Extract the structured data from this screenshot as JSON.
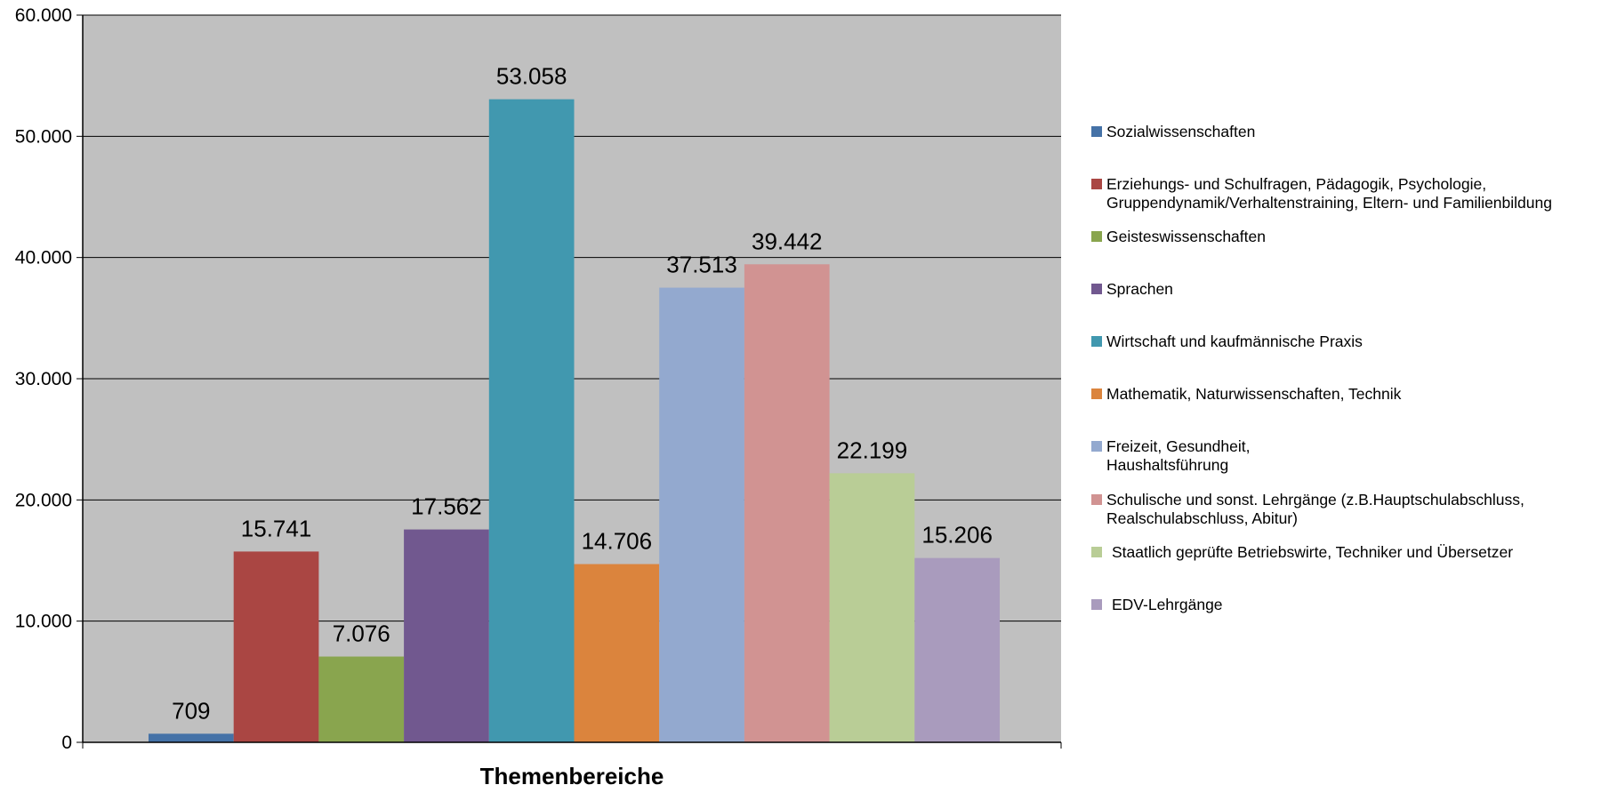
{
  "chart_data": {
    "type": "bar",
    "title": "",
    "xlabel": "Themenbereiche",
    "ylabel": "",
    "ylim": [
      0,
      60000
    ],
    "yticks": [
      0,
      10000,
      20000,
      30000,
      40000,
      50000,
      60000
    ],
    "ytick_labels": [
      "0",
      "10.000",
      "20.000",
      "30.000",
      "40.000",
      "50.000",
      "60.000"
    ],
    "grid": true,
    "legend_position": "right",
    "series": [
      {
        "name": "Sozialwissenschaften",
        "value": 709,
        "label": "709",
        "color": "#4572A7"
      },
      {
        "name": "Erziehungs- und Schulfragen, Pädagogik, Psychologie, Gruppendynamik/Verhaltenstraining, Eltern- und Familienbildung",
        "legend_lines": [
          "Erziehungs- und Schulfragen, Pädagogik, Psychologie,",
          "Gruppendynamik/Verhaltenstraining, Eltern- und Familienbildung"
        ],
        "value": 15741,
        "label": "15.741",
        "color": "#AA4643"
      },
      {
        "name": "Geisteswissenschaften",
        "value": 7076,
        "label": "7.076",
        "color": "#89A54E"
      },
      {
        "name": "Sprachen",
        "value": 17562,
        "label": "17.562",
        "color": "#71588F"
      },
      {
        "name": "Wirtschaft und kaufmännische Praxis",
        "value": 53058,
        "label": "53.058",
        "color": "#4198AF"
      },
      {
        "name": "Mathematik, Naturwissenschaften, Technik",
        "value": 14706,
        "label": "14.706",
        "color": "#DB843D"
      },
      {
        "name": "Freizeit, Gesundheit, Haushaltsführung",
        "legend_lines": [
          "Freizeit, Gesundheit,",
          "Haushaltsführung"
        ],
        "value": 37513,
        "label": "37.513",
        "color": "#93A9CF"
      },
      {
        "name": "Schulische und sonst. Lehrgänge (z.B.Hauptschulabschluss, Realschulabschluss, Abitur)",
        "legend_lines": [
          "Schulische und sonst. Lehrgänge (z.B.Hauptschulabschluss,",
          "Realschulabschluss, Abitur)"
        ],
        "value": 39442,
        "label": "39.442",
        "color": "#D19392"
      },
      {
        "name": "Staatlich geprüfte Betriebswirte, Techniker und Übersetzer",
        "value": 22199,
        "label": "22.199",
        "color": "#B9CD96"
      },
      {
        "name": "EDV-Lehrgänge",
        "value": 15206,
        "label": "15.206",
        "color": "#A99BBD"
      }
    ],
    "colors": {
      "plot_background": "#C0C0C0",
      "gridline": "#000000"
    }
  }
}
